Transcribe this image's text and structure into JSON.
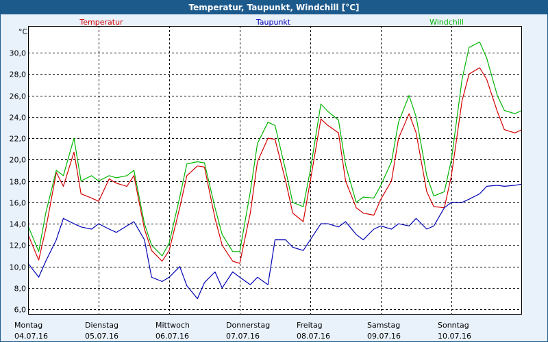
{
  "window": {
    "title": "Temperatur, Taupunkt, Windchill [°C]"
  },
  "colors": {
    "temperature": "#d40000",
    "dewpoint": "#0000b4",
    "windchill": "#00b400",
    "grid": "#000000",
    "background": "#ffffff",
    "titlebar": "#1c5a8c"
  },
  "chart_data": {
    "type": "line",
    "title": "Temperatur, Taupunkt, Windchill [°C]",
    "unit_label": "°C",
    "ylim": [
      5.5,
      32.5
    ],
    "yticks": [
      6.0,
      8.0,
      10.0,
      12.0,
      14.0,
      16.0,
      18.0,
      20.0,
      22.0,
      24.0,
      26.0,
      28.0,
      30.0
    ],
    "ytick_labels": [
      "6,0",
      "8,0",
      "10,0",
      "12,0",
      "14,0",
      "16,0",
      "18,0",
      "20,0",
      "22,0",
      "24,0",
      "26,0",
      "28,0",
      "30,0"
    ],
    "xlim": [
      0,
      7
    ],
    "xlabel_unit": "days from 04.07.16 00:00",
    "days": [
      {
        "weekday": "Montag",
        "date": "04.07.16"
      },
      {
        "weekday": "Dienstag",
        "date": "05.07.16"
      },
      {
        "weekday": "Mittwoch",
        "date": "06.07.16"
      },
      {
        "weekday": "Donnerstag",
        "date": "07.07.16"
      },
      {
        "weekday": "Freitag",
        "date": "08.07.16"
      },
      {
        "weekday": "Samstag",
        "date": "09.07.16"
      },
      {
        "weekday": "Sonntag",
        "date": "10.07.16"
      }
    ],
    "x": [
      0.0,
      0.15,
      0.25,
      0.4,
      0.5,
      0.65,
      0.75,
      0.9,
      1.0,
      1.15,
      1.25,
      1.4,
      1.5,
      1.65,
      1.75,
      1.9,
      2.0,
      2.15,
      2.25,
      2.4,
      2.5,
      2.65,
      2.75,
      2.9,
      3.0,
      3.15,
      3.25,
      3.4,
      3.5,
      3.65,
      3.75,
      3.9,
      4.0,
      4.15,
      4.25,
      4.4,
      4.5,
      4.65,
      4.75,
      4.9,
      5.0,
      5.15,
      5.25,
      5.4,
      5.5,
      5.65,
      5.75,
      5.9,
      6.0,
      6.15,
      6.25,
      6.4,
      6.5,
      6.65,
      6.75,
      6.9,
      7.0
    ],
    "series": [
      {
        "name": "Temperatur",
        "values": [
          13.0,
          10.6,
          13.5,
          18.8,
          17.5,
          20.7,
          16.8,
          16.4,
          16.1,
          18.2,
          17.8,
          17.5,
          18.5,
          13.5,
          11.5,
          10.5,
          11.5,
          15.5,
          18.5,
          19.4,
          19.3,
          14.5,
          12.0,
          10.5,
          10.3,
          15.0,
          19.8,
          22.0,
          21.9,
          18.0,
          15.0,
          14.2,
          18.0,
          23.8,
          23.2,
          22.5,
          18.0,
          15.5,
          15.0,
          14.8,
          16.3,
          18.0,
          22.0,
          24.3,
          22.5,
          17.0,
          15.6,
          15.5,
          18.5,
          25.5,
          28.0,
          28.6,
          27.5,
          24.5,
          22.8,
          22.5,
          22.8
        ]
      },
      {
        "name": "Taupunkt",
        "values": [
          10.3,
          9.0,
          10.5,
          12.5,
          14.5,
          14.0,
          13.7,
          13.5,
          14.0,
          13.5,
          13.2,
          13.8,
          14.2,
          12.5,
          9.0,
          8.6,
          9.0,
          10.0,
          8.2,
          7.0,
          8.5,
          9.5,
          8.0,
          9.5,
          9.0,
          8.3,
          9.0,
          8.3,
          12.5,
          12.5,
          11.8,
          11.5,
          12.5,
          14.0,
          14.0,
          13.7,
          14.2,
          13.0,
          12.5,
          13.5,
          13.8,
          13.5,
          14.0,
          13.8,
          14.5,
          13.5,
          13.8,
          15.5,
          16.0,
          16.0,
          16.3,
          16.8,
          17.5,
          17.6,
          17.5,
          17.6,
          17.7
        ]
      },
      {
        "name": "Windchill",
        "values": [
          13.8,
          11.4,
          15.0,
          19.0,
          18.5,
          22.0,
          18.0,
          18.5,
          18.0,
          18.5,
          18.3,
          18.5,
          19.0,
          14.0,
          12.0,
          11.0,
          12.2,
          16.5,
          19.6,
          19.8,
          19.7,
          15.5,
          13.0,
          11.4,
          11.4,
          17.0,
          21.5,
          23.5,
          23.2,
          19.0,
          16.0,
          15.6,
          19.0,
          25.2,
          24.5,
          23.7,
          19.5,
          16.0,
          16.5,
          16.4,
          17.6,
          19.8,
          23.5,
          26.0,
          24.0,
          18.5,
          16.6,
          17.0,
          20.0,
          27.5,
          30.5,
          31.0,
          29.5,
          26.0,
          24.6,
          24.3,
          24.6
        ]
      }
    ]
  }
}
